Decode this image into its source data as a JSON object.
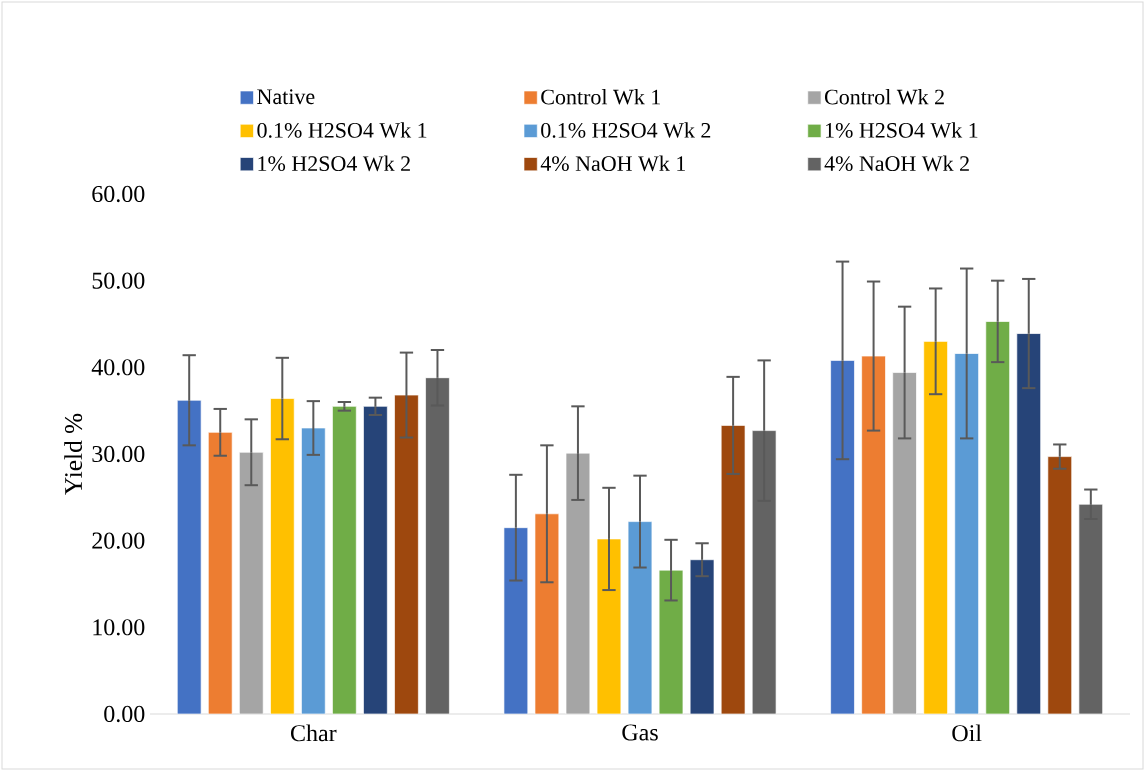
{
  "chart_data": {
    "type": "bar",
    "categories": [
      "Char",
      "Gas",
      "Oil"
    ],
    "ylabel": "Yield %",
    "ylim": [
      0,
      60
    ],
    "yticks": [
      {
        "value": 0,
        "label": "0.00"
      },
      {
        "value": 10,
        "label": "10.00"
      },
      {
        "value": 20,
        "label": "20.00"
      },
      {
        "value": 30,
        "label": "30.00"
      },
      {
        "value": 40,
        "label": "40.00"
      },
      {
        "value": 50,
        "label": "50.00"
      },
      {
        "value": 60,
        "label": "60.00"
      }
    ],
    "legend": "top",
    "grid": false,
    "series": [
      {
        "name": "Native",
        "color": "#4472c4",
        "values": [
          36.2,
          21.5,
          40.8
        ],
        "errors": [
          5.2,
          6.1,
          11.4
        ]
      },
      {
        "name": "Control Wk 1",
        "color": "#ed7d31",
        "values": [
          32.5,
          23.1,
          41.3
        ],
        "errors": [
          2.7,
          7.9,
          8.6
        ]
      },
      {
        "name": "Control Wk 2",
        "color": "#a5a5a5",
        "values": [
          30.2,
          30.1,
          39.4
        ],
        "errors": [
          3.8,
          5.4,
          7.6
        ]
      },
      {
        "name": "0.1% H2SO4 Wk 1",
        "color": "#ffc000",
        "values": [
          36.4,
          20.2,
          43.0
        ],
        "errors": [
          4.7,
          5.9,
          6.1
        ]
      },
      {
        "name": "0.1% H2SO4 Wk 2",
        "color": "#5b9bd5",
        "values": [
          33.0,
          22.2,
          41.6
        ],
        "errors": [
          3.1,
          5.3,
          9.8
        ]
      },
      {
        "name": "1% H2SO4 Wk 1",
        "color": "#70ad47",
        "values": [
          35.5,
          16.6,
          45.3
        ],
        "errors": [
          0.5,
          3.5,
          4.7
        ]
      },
      {
        "name": "1% H2SO4 Wk 2",
        "color": "#264478",
        "values": [
          35.5,
          17.8,
          43.9
        ],
        "errors": [
          1.0,
          1.9,
          6.3
        ]
      },
      {
        "name": "4% NaOH Wk 1",
        "color": "#9e480e",
        "values": [
          36.8,
          33.3,
          29.7
        ],
        "errors": [
          4.9,
          5.6,
          1.4
        ]
      },
      {
        "name": "4% NaOH Wk 2",
        "color": "#636363",
        "values": [
          38.8,
          32.7,
          24.2
        ],
        "errors": [
          3.2,
          8.1,
          1.7
        ]
      }
    ]
  }
}
